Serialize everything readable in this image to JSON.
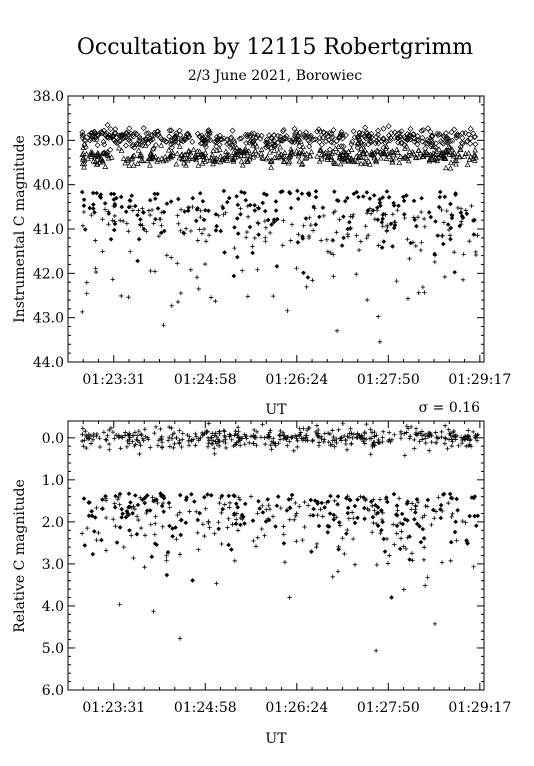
{
  "title": "Occultation by 12115 Robertgrimm",
  "subtitle": "2/3 June 2021, Borowiec",
  "chart_data": [
    {
      "type": "scatter",
      "name": "upper",
      "ylabel": "Instrumental C magnitude",
      "xlabel": "UT",
      "ylim": [
        44.0,
        38.0
      ],
      "y_inverted": true,
      "yticks": [
        "38.0",
        "39.0",
        "40.0",
        "41.0",
        "42.0",
        "43.0",
        "44.0"
      ],
      "xticks": [
        "01:23:31",
        "01:24:58",
        "01:26:24",
        "01:27:50",
        "01:29:17"
      ],
      "series": [
        {
          "marker": "diamond-open",
          "band_center": 38.95,
          "band_spread": 0.18
        },
        {
          "marker": "triangle-open",
          "band_center": 39.35,
          "band_spread": 0.18
        },
        {
          "marker": "diamond-filled",
          "band_center": 40.45,
          "band_spread": 0.9
        },
        {
          "marker": "plus",
          "band_center": 40.9,
          "band_spread": 1.2
        }
      ],
      "x_points": 450,
      "grid": false
    },
    {
      "type": "scatter",
      "name": "lower",
      "ylabel": "Relative C magnitude",
      "xlabel": "UT",
      "annotation": "σ = 0.16",
      "ylim": [
        6.0,
        -0.4
      ],
      "y_inverted": true,
      "yticks": [
        "0.0",
        "1.0",
        "2.0",
        "3.0",
        "4.0",
        "5.0",
        "6.0"
      ],
      "xticks": [
        "01:23:31",
        "01:24:58",
        "01:26:24",
        "01:27:50",
        "01:29:17"
      ],
      "series": [
        {
          "marker": "plus",
          "band_center": 0.0,
          "band_spread": 0.22
        },
        {
          "marker": "diamond-filled",
          "band_center": 1.6,
          "band_spread": 0.8
        },
        {
          "marker": "plus",
          "band_center": 1.8,
          "band_spread": 1.2
        }
      ],
      "x_points": 450,
      "grid": false
    }
  ]
}
